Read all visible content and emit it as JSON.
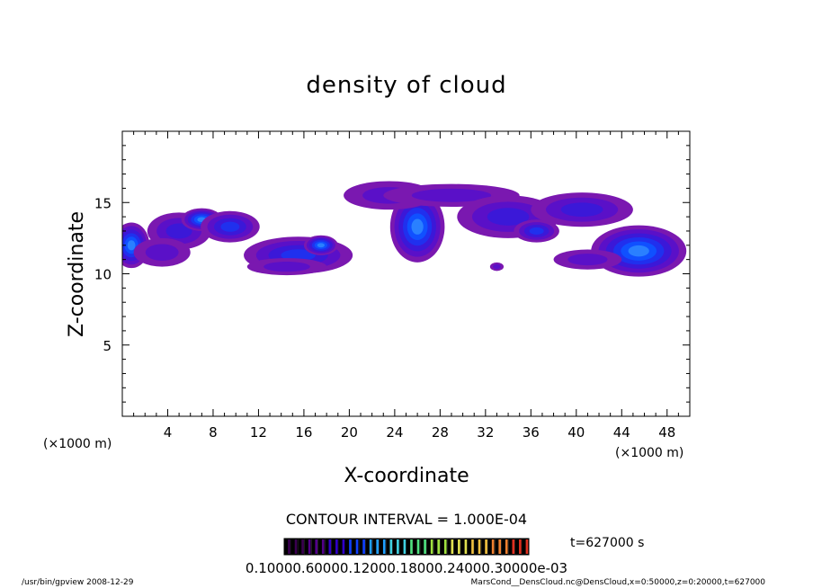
{
  "chart_data": {
    "type": "heatmap",
    "title": "density of cloud",
    "xlabel": "X-coordinate",
    "ylabel": "Z-coordinate",
    "x_unit": "(×1000 m)",
    "xlim": [
      0,
      50
    ],
    "ylim": [
      0,
      20
    ],
    "x_ticks": [
      4,
      8,
      12,
      16,
      20,
      24,
      28,
      32,
      36,
      40,
      44,
      48
    ],
    "y_ticks": [
      5,
      10,
      15
    ],
    "contour_interval": "CONTOUR INTERVAL = 1.000E-04",
    "time_label": "t=627000 s",
    "colorbar_labels": "0.10000.60000.12000.18000.24000.30000e-03",
    "colorbar_colors": [
      "#3a0050",
      "#52008a",
      "#3000c8",
      "#1040ff",
      "#20a0ff",
      "#40d0e0",
      "#50e080",
      "#a0e040",
      "#e0e050",
      "#f0c040",
      "#f08030",
      "#e03020"
    ],
    "blobs": [
      {
        "x": 0.8,
        "z": 12.0,
        "rx": 1.6,
        "rz": 1.6,
        "level": 0.85
      },
      {
        "x": 5.0,
        "z": 13.0,
        "rx": 2.8,
        "rz": 1.3,
        "level": 0.4
      },
      {
        "x": 7.0,
        "z": 13.8,
        "rx": 1.8,
        "rz": 0.8,
        "level": 0.85
      },
      {
        "x": 9.5,
        "z": 13.3,
        "rx": 2.6,
        "rz": 1.1,
        "level": 0.55
      },
      {
        "x": 3.5,
        "z": 11.5,
        "rx": 2.5,
        "rz": 1.0,
        "level": 0.3
      },
      {
        "x": 15.5,
        "z": 11.3,
        "rx": 4.8,
        "rz": 1.3,
        "level": 0.55
      },
      {
        "x": 17.5,
        "z": 12.0,
        "rx": 1.5,
        "rz": 0.7,
        "level": 0.85
      },
      {
        "x": 14.5,
        "z": 10.5,
        "rx": 3.5,
        "rz": 0.6,
        "level": 0.3
      },
      {
        "x": 26.0,
        "z": 13.3,
        "rx": 2.4,
        "rz": 2.5,
        "level": 0.9
      },
      {
        "x": 23.5,
        "z": 15.5,
        "rx": 4.0,
        "rz": 1.0,
        "level": 0.3
      },
      {
        "x": 29.0,
        "z": 15.5,
        "rx": 6.0,
        "rz": 0.8,
        "level": 0.3
      },
      {
        "x": 34.0,
        "z": 14.0,
        "rx": 4.5,
        "rz": 1.5,
        "level": 0.45
      },
      {
        "x": 36.5,
        "z": 13.0,
        "rx": 2.0,
        "rz": 0.8,
        "level": 0.6
      },
      {
        "x": 40.5,
        "z": 14.5,
        "rx": 4.5,
        "rz": 1.2,
        "level": 0.4
      },
      {
        "x": 45.5,
        "z": 11.6,
        "rx": 4.2,
        "rz": 1.8,
        "level": 0.85
      },
      {
        "x": 41.0,
        "z": 11.0,
        "rx": 3.0,
        "rz": 0.7,
        "level": 0.3
      },
      {
        "x": 33.0,
        "z": 10.5,
        "rx": 0.6,
        "rz": 0.3,
        "level": 0.3
      }
    ]
  },
  "footer": {
    "left": "/usr/bin/gpview   2008-12-29",
    "right": "MarsCond__DensCloud.nc@DensCloud,x=0:50000,z=0:20000,t=627000"
  }
}
